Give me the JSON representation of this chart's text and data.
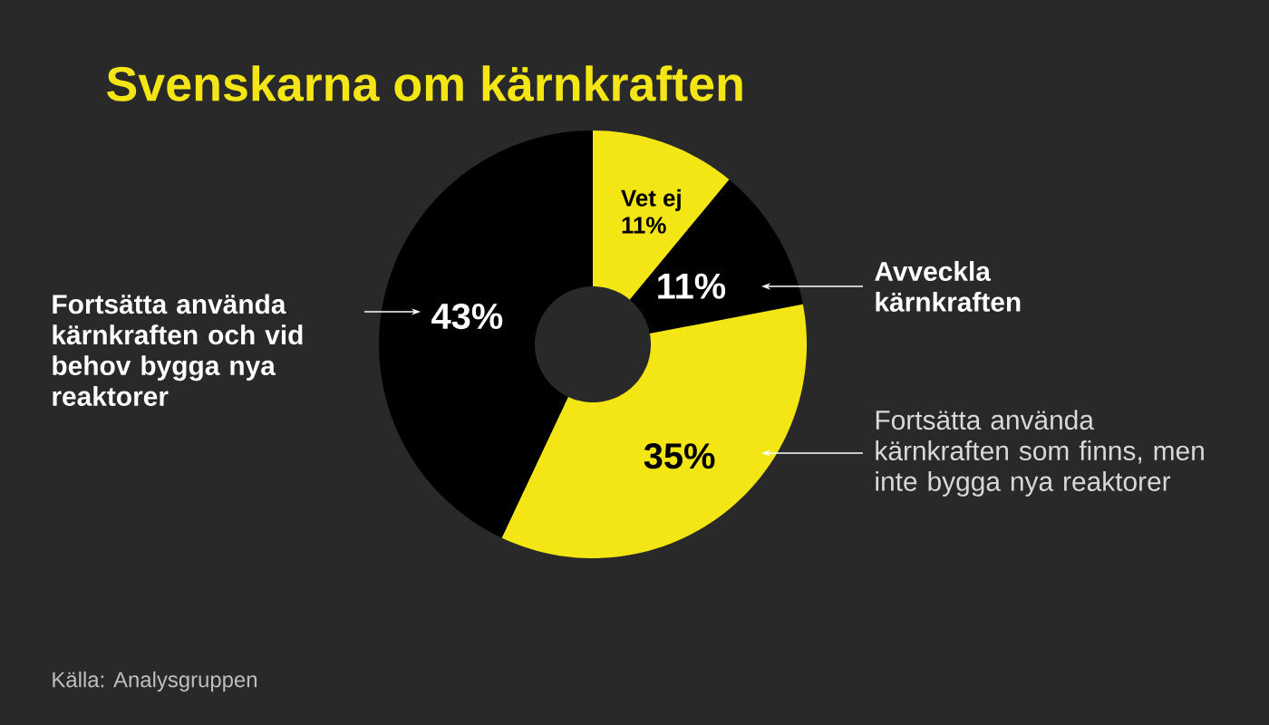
{
  "chart_data": {
    "type": "donut",
    "title": "Svenskarna om kärnkraften",
    "categories": [
      "Vet ej",
      "Avveckla kärnkraften",
      "Fortsätta använda kärnkraften som finns, men inte bygga nya reaktorer",
      "Fortsätta använda kärnkraften och vid behov bygga nya reaktorer"
    ],
    "values": [
      11,
      11,
      35,
      43
    ],
    "value_labels": [
      "11%",
      "11%",
      "35%",
      "43%"
    ],
    "colors": [
      "#f4e514",
      "#000000",
      "#f4e514",
      "#000000"
    ],
    "annotations": [
      "Källa: Analysgruppen"
    ]
  }
}
